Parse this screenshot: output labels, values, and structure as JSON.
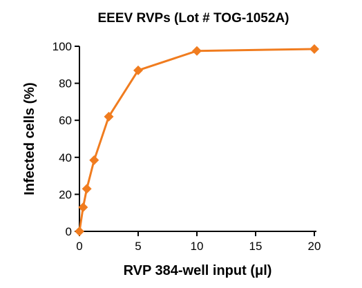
{
  "chart_data": {
    "type": "line",
    "title": "EEEV RVPs (Lot # TOG-1052A)",
    "xlabel": "RVP 384-well input (μl)",
    "ylabel": "Infected cells (%)",
    "xlim": [
      0,
      20
    ],
    "ylim": [
      0,
      100
    ],
    "xticks": [
      0,
      5,
      10,
      15,
      20
    ],
    "yticks": [
      0,
      20,
      40,
      60,
      80,
      100
    ],
    "grid": false,
    "legend": "none",
    "series": [
      {
        "x": [
          0,
          0.3125,
          0.625,
          1.25,
          2.5,
          5,
          10,
          20
        ],
        "y": [
          0,
          13,
          23,
          38.5,
          62,
          87,
          97.5,
          98.5
        ],
        "color": "#f07c1f",
        "marker": "diamond"
      }
    ]
  }
}
